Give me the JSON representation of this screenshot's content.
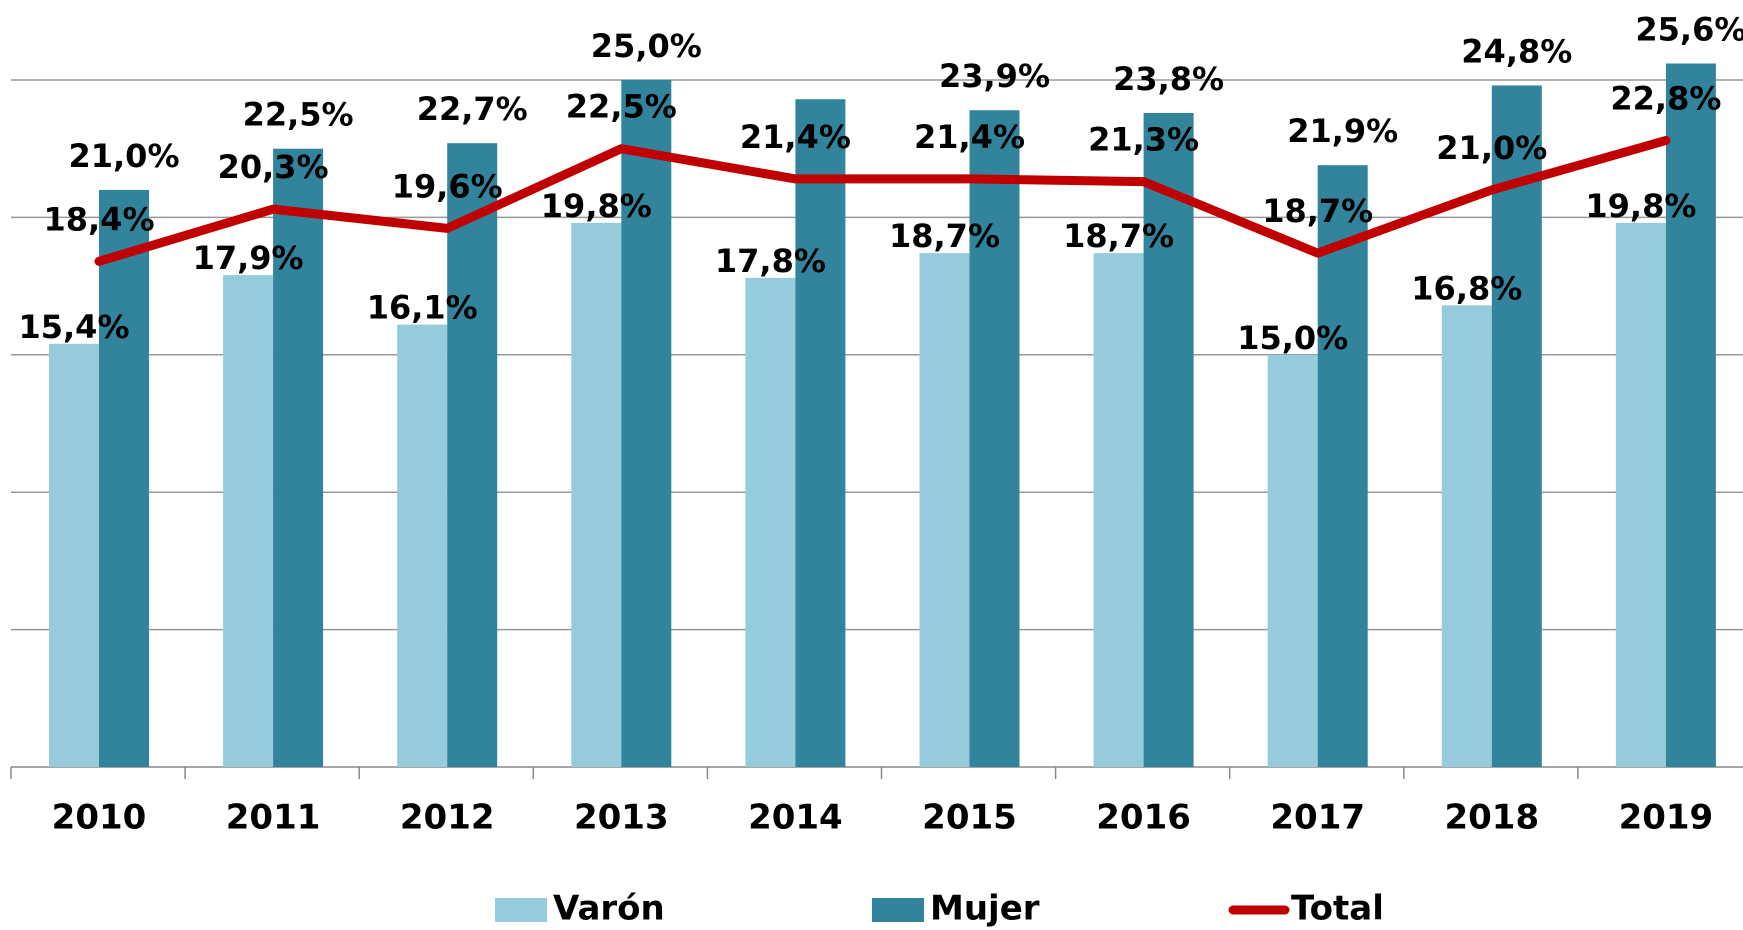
{
  "chart_data": {
    "type": "bar",
    "categories": [
      "2010",
      "2011",
      "2012",
      "2013",
      "2014",
      "2015",
      "2016",
      "2017",
      "2018",
      "2019"
    ],
    "series": [
      {
        "name": "Varón",
        "type": "bar",
        "color": "#96cbdc",
        "values": [
          15.4,
          17.9,
          16.1,
          19.8,
          17.8,
          18.7,
          18.7,
          15.0,
          16.8,
          19.8
        ],
        "value_labels": [
          "15,4%",
          "17,9%",
          "16,1%",
          "19,8%",
          "17,8%",
          "18,7%",
          "18,7%",
          "15,0%",
          "16,8%",
          "19,8%"
        ]
      },
      {
        "name": "Mujer",
        "type": "bar",
        "color": "#31849b",
        "values": [
          21.0,
          22.5,
          22.7,
          25.0,
          24.3,
          23.9,
          23.8,
          21.9,
          24.8,
          25.6
        ],
        "value_labels": [
          "21,0%",
          "22,5%",
          "22,7%",
          "25,0%",
          null,
          "23,9%",
          "23,8%",
          "21,9%",
          "24,8%",
          "25,6%"
        ]
      },
      {
        "name": "Total",
        "type": "line",
        "color": "#c00000",
        "values": [
          18.4,
          20.3,
          19.6,
          22.5,
          21.4,
          21.4,
          21.3,
          18.7,
          21.0,
          22.8
        ],
        "value_labels": [
          "18,4%",
          "20,3%",
          "19,6%",
          "22,5%",
          "21,4%",
          "21,4%",
          "21,3%",
          "18,7%",
          "21,0%",
          "22,8%"
        ]
      }
    ],
    "ylim": [
      0,
      25
    ],
    "yticks": [
      0,
      5,
      10,
      15,
      20,
      25
    ],
    "grid": true,
    "legend": "bottom"
  }
}
